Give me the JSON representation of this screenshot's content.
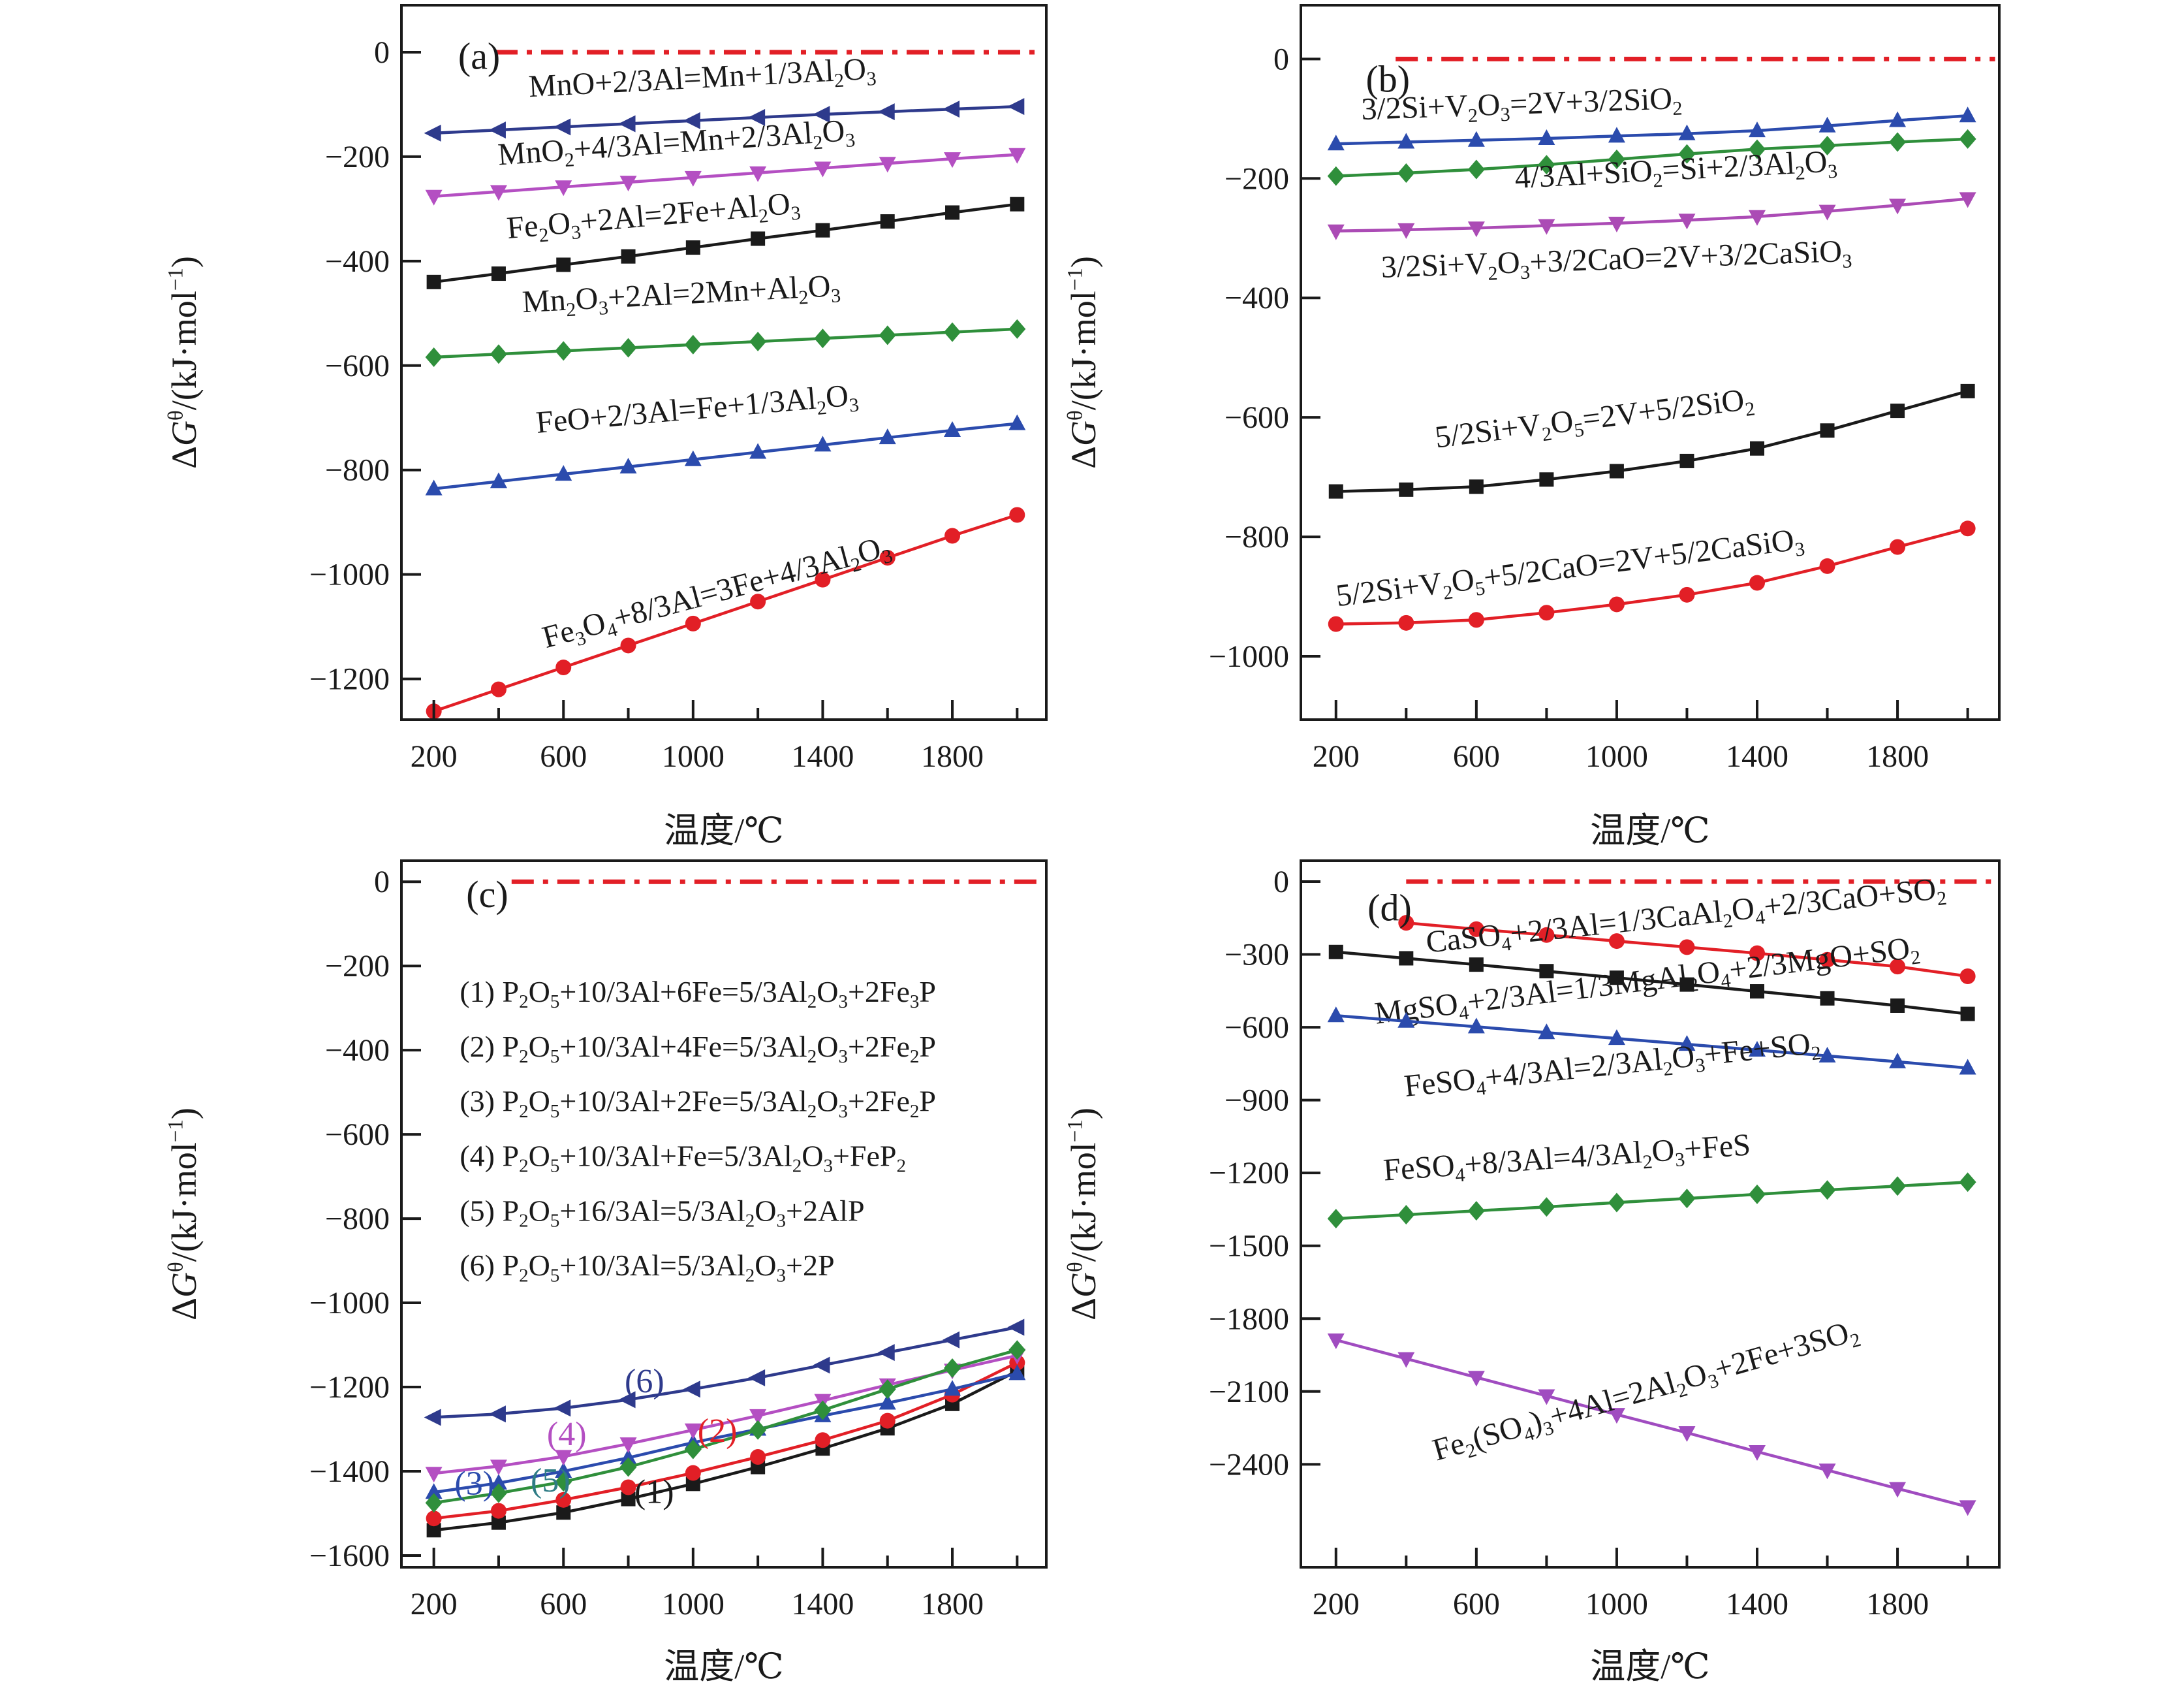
{
  "figure": {
    "x_axis_title": "温度/℃",
    "y_axis_title": "Δ*G*^{θ}/(kJ·mol^{−1})",
    "zero_line_color": "#e21f26",
    "frame_color": "#1a1a1a"
  },
  "chart_data": [
    {
      "panel": "a",
      "type": "line",
      "xlim": [
        100,
        2090
      ],
      "ylim": [
        -1278,
        90
      ],
      "yticks": [
        0,
        -200,
        -400,
        -600,
        -800,
        -1000,
        -1200
      ],
      "xticks_major": [
        200,
        600,
        1000,
        1400,
        1800
      ],
      "xticks_minor": [
        400,
        800,
        1200,
        1600,
        2000
      ],
      "x_default": [
        200,
        400,
        600,
        800,
        1000,
        1200,
        1400,
        1600,
        1800,
        2000
      ],
      "panel_label": {
        "text": "(a)",
        "x": 275,
        "y": -32
      },
      "zero_line": {
        "x1": 390,
        "x2": 2078
      },
      "series": [
        {
          "formula": "MnO+2/3Al=Mn+1/3Al_{2}O_{3}",
          "color": "#2e3a8c",
          "marker": "triangle-left",
          "values": [
            -155,
            -149,
            -143,
            -137,
            -131,
            -125,
            -119,
            -114,
            -109,
            -104
          ],
          "label": {
            "x": 1030,
            "y": -68,
            "angle": -3
          }
        },
        {
          "formula": "MnO_{2}+4/3Al=Mn+2/3Al_{2}O_{3}",
          "color": "#b44fc2",
          "marker": "triangle-down",
          "values": [
            -276,
            -267,
            -258,
            -249,
            -240,
            -231,
            -222,
            -213,
            -204,
            -196
          ],
          "label": {
            "x": 950,
            "y": -192,
            "angle": -4
          }
        },
        {
          "formula": "Fe_{2}O_{3}+2Al=2Fe+Al_{2}O_{3}",
          "color": "#1a1a1a",
          "marker": "square",
          "values": [
            -440,
            -424,
            -407,
            -391,
            -374,
            -357,
            -341,
            -324,
            -307,
            -291
          ],
          "label": {
            "x": 880,
            "y": -332,
            "angle": -5
          }
        },
        {
          "formula": "Mn_{2}O_{3}+2Al=2Mn+Al_{2}O_{3}",
          "color": "#2f8f3b",
          "marker": "diamond",
          "values": [
            -584,
            -578,
            -572,
            -566,
            -560,
            -554,
            -548,
            -542,
            -536,
            -530
          ],
          "label": {
            "x": 965,
            "y": -482,
            "angle": -3
          }
        },
        {
          "formula": "FeO+2/3Al=Fe+1/3Al_{2}O_{3}",
          "color": "#2b4bad",
          "marker": "triangle-up",
          "values": [
            -836,
            -822,
            -808,
            -794,
            -780,
            -766,
            -752,
            -738,
            -724,
            -711
          ],
          "label": {
            "x": 1015,
            "y": -702,
            "angle": -5
          }
        },
        {
          "formula": "Fe_{3}O_{4}+8/3Al=3Fe+4/3Al_{2}O_{3}",
          "color": "#e21f26",
          "marker": "circle",
          "values": [
            -1262,
            -1220,
            -1178,
            -1136,
            -1094,
            -1052,
            -1010,
            -968,
            -926,
            -886
          ],
          "label": {
            "x": 1080,
            "y": -1052,
            "angle": -15
          }
        }
      ]
    },
    {
      "panel": "b",
      "type": "line",
      "xlim": [
        100,
        2090
      ],
      "ylim": [
        -1106,
        90
      ],
      "yticks": [
        0,
        -200,
        -400,
        -600,
        -800,
        -1000
      ],
      "xticks_major": [
        200,
        600,
        1000,
        1400,
        1800
      ],
      "xticks_minor": [
        400,
        800,
        1200,
        1600,
        2000
      ],
      "x_default": [
        200,
        400,
        600,
        800,
        1000,
        1200,
        1400,
        1600,
        1800,
        2000
      ],
      "panel_label": {
        "text": "(b)",
        "x": 285,
        "y": -55
      },
      "zero_line": {
        "x1": 370,
        "x2": 2078
      },
      "series": [
        {
          "formula": "3/2Si+V_{2}O_{3}=2V+3/2SiO_{2}",
          "color": "#2b4bad",
          "marker": "triangle-up",
          "values": [
            -142,
            -139,
            -136,
            -133,
            -129,
            -125,
            -120,
            -112,
            -103,
            -95
          ],
          "label": {
            "x": 730,
            "y": -92,
            "angle": -2
          }
        },
        {
          "formula": "4/3Al+SiO_{2}=Si+2/3Al_{2}O_{3}",
          "color": "#2f8f3b",
          "marker": "diamond",
          "values": [
            -196,
            -191,
            -185,
            -177,
            -168,
            -159,
            -151,
            -145,
            -139,
            -134
          ],
          "label": {
            "x": 1170,
            "y": -202,
            "angle": -3
          }
        },
        {
          "formula": "3/2Si+V_{2}O_{3}+3/2CaO=2V+3/2CaSiO_{3}",
          "color": "#ab4bb5",
          "marker": "triangle-down",
          "values": [
            -288,
            -286,
            -283,
            -279,
            -275,
            -270,
            -264,
            -255,
            -245,
            -234
          ],
          "label": {
            "x": 1000,
            "y": -352,
            "angle": -2
          }
        },
        {
          "formula": "5/2Si+V_{2}O_{5}=2V+5/2SiO_{2}",
          "color": "#1a1a1a",
          "marker": "square",
          "values": [
            -724,
            -721,
            -716,
            -704,
            -690,
            -673,
            -652,
            -622,
            -589,
            -556
          ],
          "label": {
            "x": 940,
            "y": -618,
            "angle": -7
          }
        },
        {
          "formula": "5/2Si+V_{2}O_{5}+5/2CaO=2V+5/2CaSiO_{3}",
          "color": "#e21f26",
          "marker": "circle",
          "values": [
            -946,
            -944,
            -939,
            -927,
            -913,
            -897,
            -877,
            -849,
            -817,
            -786
          ],
          "label": {
            "x": 870,
            "y": -868,
            "angle": -7
          }
        }
      ]
    },
    {
      "panel": "c",
      "type": "line",
      "xlim": [
        100,
        2090
      ],
      "ylim": [
        -1628,
        50
      ],
      "yticks": [
        0,
        -200,
        -400,
        -600,
        -800,
        -1000,
        -1200,
        -1400,
        -1600
      ],
      "xticks_major": [
        200,
        600,
        1000,
        1400,
        1800
      ],
      "xticks_minor": [
        400,
        800,
        1200,
        1600,
        2000
      ],
      "x_default": [
        200,
        400,
        600,
        800,
        1000,
        1200,
        1400,
        1600,
        1800,
        2000
      ],
      "panel_label": {
        "text": "(c)",
        "x": 300,
        "y": -60
      },
      "zero_line": {
        "x1": 440,
        "x2": 2078
      },
      "legend": {
        "x": 280,
        "y": -285,
        "dy": 130,
        "items": [
          "(1) P_{2}O_{5}+10/3Al+6Fe=5/3Al_{2}O_{3}+2Fe_{3}P",
          "(2) P_{2}O_{5}+10/3Al+4Fe=5/3Al_{2}O_{3}+2Fe_{2}P",
          "(3) P_{2}O_{5}+10/3Al+2Fe=5/3Al_{2}O_{3}+2Fe_{2}P",
          "(4) P_{2}O_{5}+10/3Al+Fe=5/3Al_{2}O_{3}+FeP_{2}",
          "(5) P_{2}O_{5}+16/3Al=5/3Al_{2}O_{3}+2AlP",
          "(6) P_{2}O_{5}+10/3Al=5/3Al_{2}O_{3}+2P"
        ]
      },
      "annotations": [
        {
          "text": "(6)",
          "x": 850,
          "y": -1212,
          "color": "#2e3a8c"
        },
        {
          "text": "(4)",
          "x": 610,
          "y": -1338,
          "color": "#b44fc2"
        },
        {
          "text": "(3)",
          "x": 325,
          "y": -1455,
          "color": "#2b4bad"
        },
        {
          "text": "(5)",
          "x": 560,
          "y": -1448,
          "color": "#2e7c85"
        },
        {
          "text": "(2)",
          "x": 1075,
          "y": -1330,
          "color": "#e21f26"
        },
        {
          "text": "(1)",
          "x": 880,
          "y": -1475,
          "color": "#1a1a1a"
        }
      ],
      "series": [
        {
          "formula": "P_{2}O_{5}+10/3Al+6Fe=5/3Al_{2}O_{3}+2Fe_{3}P",
          "name": "(1)",
          "color": "#1a1a1a",
          "marker": "square",
          "values": [
            -1540,
            -1522,
            -1498,
            -1466,
            -1430,
            -1390,
            -1346,
            -1298,
            -1240,
            -1162
          ]
        },
        {
          "formula": "P_{2}O_{5}+10/3Al+4Fe=5/3Al_{2}O_{3}+2Fe_{2}P",
          "name": "(2)",
          "color": "#e21f26",
          "marker": "circle",
          "values": [
            -1512,
            -1494,
            -1468,
            -1438,
            -1404,
            -1366,
            -1326,
            -1280,
            -1218,
            -1142
          ]
        },
        {
          "formula": "P_{2}O_{5}+10/3Al+2Fe=5/3Al_{2}O_{3}+2Fe_{2}P",
          "name": "(3)",
          "color": "#2b4bad",
          "marker": "triangle-up",
          "values": [
            -1450,
            -1428,
            -1400,
            -1368,
            -1332,
            -1300,
            -1268,
            -1238,
            -1205,
            -1168
          ]
        },
        {
          "formula": "P_{2}O_{5}+10/3Al+Fe=5/3Al_{2}O_{3}+FeP_{2}",
          "name": "(4)",
          "color": "#b44fc2",
          "marker": "triangle-down",
          "values": [
            -1405,
            -1388,
            -1365,
            -1335,
            -1302,
            -1268,
            -1232,
            -1195,
            -1160,
            -1125
          ]
        },
        {
          "formula": "P_{2}O_{5}+16/3Al=5/3Al_{2}O_{3}+2AlP",
          "name": "(5)",
          "color": "#2f8f3b",
          "marker": "diamond",
          "values": [
            -1475,
            -1452,
            -1425,
            -1390,
            -1348,
            -1302,
            -1255,
            -1205,
            -1155,
            -1112
          ]
        },
        {
          "formula": "P_{2}O_{5}+10/3Al=5/3Al_{2}O_{3}+2P",
          "name": "(6)",
          "color": "#2e3a8c",
          "marker": "triangle-left",
          "values": [
            -1272,
            -1264,
            -1250,
            -1230,
            -1205,
            -1178,
            -1148,
            -1118,
            -1088,
            -1058
          ]
        }
      ]
    },
    {
      "panel": "d",
      "type": "line",
      "xlim": [
        100,
        2090
      ],
      "ylim": [
        -2824,
        86
      ],
      "yticks": [
        0,
        -300,
        -600,
        -900,
        -1200,
        -1500,
        -1800,
        -2100,
        -2400
      ],
      "xticks_major": [
        200,
        600,
        1000,
        1400,
        1800
      ],
      "xticks_minor": [
        400,
        800,
        1200,
        1600,
        2000
      ],
      "x_default": [
        200,
        400,
        600,
        800,
        1000,
        1200,
        1400,
        1600,
        1800,
        2000
      ],
      "panel_label": {
        "text": "(d)",
        "x": 290,
        "y": -160
      },
      "zero_line": {
        "x1": 400,
        "x2": 2078
      },
      "series": [
        {
          "formula": "CaSO_{4}+2/3Al=1/3CaAl_{2}O_{4}+2/3CaO+SO_{2}",
          "color": "#e21f26",
          "marker": "circle",
          "x": [
            400,
            600,
            800,
            1000,
            1200,
            1400,
            1600,
            1800,
            2000
          ],
          "values": [
            -170,
            -196,
            -220,
            -245,
            -270,
            -295,
            -322,
            -350,
            -390
          ],
          "label": {
            "x": 1200,
            "y": -180,
            "angle": -6
          }
        },
        {
          "formula": "MgSO_{4}+2/3Al=1/3MgAl_{2}O_{4}+2/3MgO+SO_{2}",
          "color": "#1a1a1a",
          "marker": "square",
          "values": [
            -290,
            -316,
            -342,
            -369,
            -396,
            -424,
            -452,
            -481,
            -511,
            -545
          ],
          "label": {
            "x": 1090,
            "y": -448,
            "angle": -7
          }
        },
        {
          "formula": "FeSO_{4}+4/3Al=2/3Al_{2}O_{3}+Fe+SO_{2}",
          "color": "#2b4bad",
          "marker": "triangle-up",
          "values": [
            -552,
            -575,
            -598,
            -622,
            -646,
            -670,
            -694,
            -718,
            -742,
            -768
          ],
          "label": {
            "x": 990,
            "y": -795,
            "angle": -6
          }
        },
        {
          "formula": "FeSO_{4}+8/3Al=4/3Al_{2}O_{3}+FeS",
          "color": "#2f8f3b",
          "marker": "diamond",
          "values": [
            -1388,
            -1372,
            -1356,
            -1340,
            -1322,
            -1305,
            -1288,
            -1270,
            -1254,
            -1238
          ],
          "label": {
            "x": 860,
            "y": -1178,
            "angle": -4
          }
        },
        {
          "formula": "Fe_{2}(SO_{4})_{3}+4Al=2Al_{2}O_{3}+2Fe+3SO_{2}",
          "color": "#a04cc0",
          "marker": "triangle-down",
          "values": [
            -1888,
            -1965,
            -2042,
            -2118,
            -2195,
            -2270,
            -2348,
            -2424,
            -2500,
            -2575
          ],
          "label": {
            "x": 1090,
            "y": -2135,
            "angle": -16
          }
        }
      ]
    }
  ]
}
